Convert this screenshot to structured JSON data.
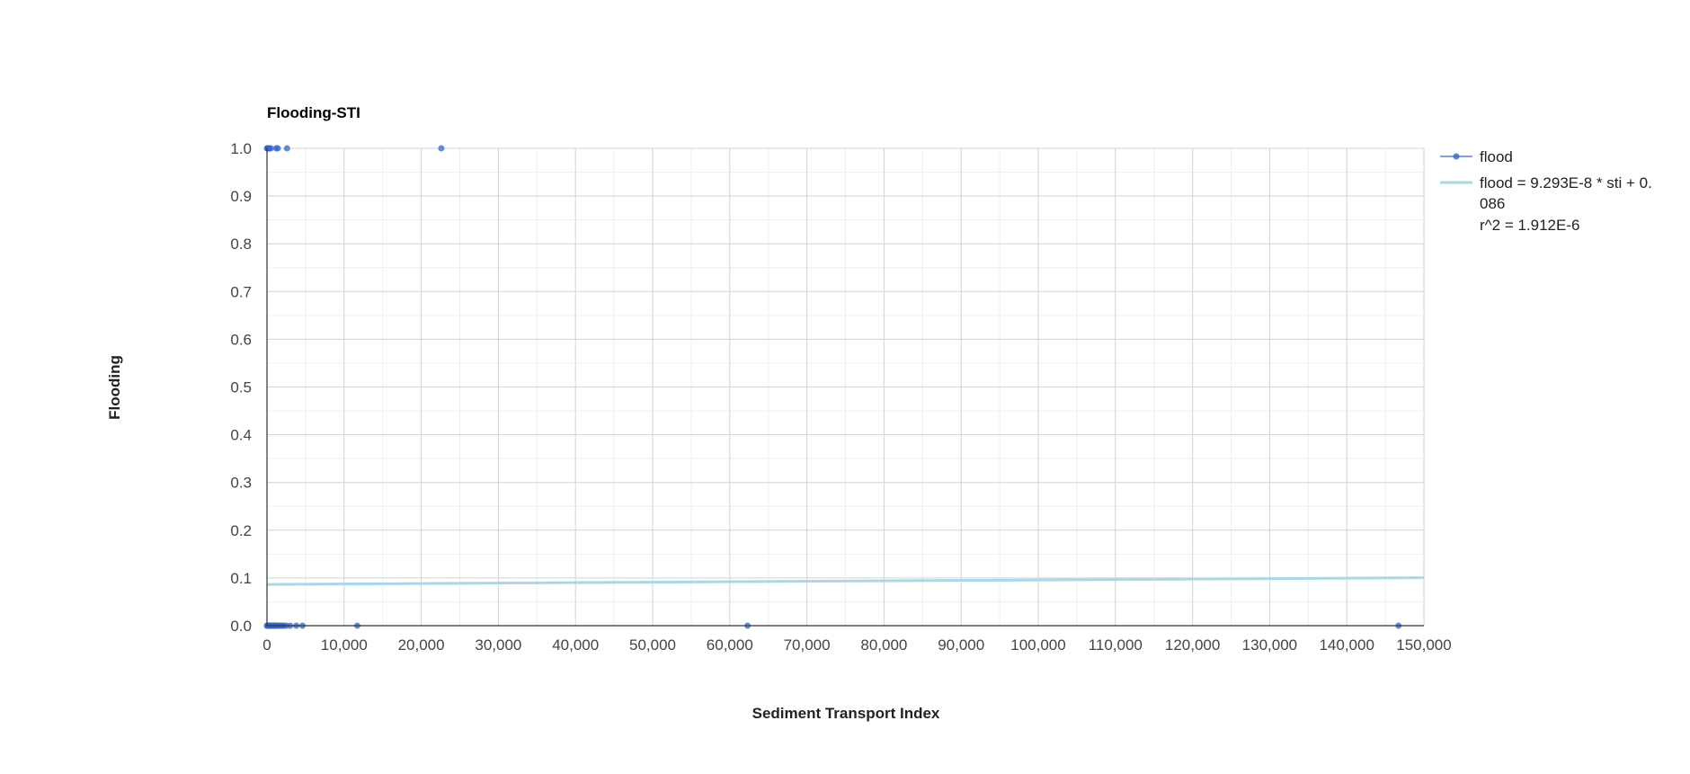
{
  "chart_data": {
    "type": "scatter",
    "title": "Flooding-STI",
    "xlabel": "Sediment Transport Index",
    "ylabel": "Flooding",
    "xlim": [
      0,
      150000
    ],
    "ylim": [
      0,
      1
    ],
    "x_ticks": [
      "0",
      "10,000",
      "20,000",
      "30,000",
      "40,000",
      "50,000",
      "60,000",
      "70,000",
      "80,000",
      "90,000",
      "100,000",
      "110,000",
      "120,000",
      "130,000",
      "140,000",
      "150,000"
    ],
    "y_ticks": [
      "0.0",
      "0.1",
      "0.2",
      "0.3",
      "0.4",
      "0.5",
      "0.6",
      "0.7",
      "0.8",
      "0.9",
      "1.0"
    ],
    "grid": true,
    "legend_position": "right",
    "series": [
      {
        "name": "flood",
        "color": "#3366cc",
        "points": [
          [
            0,
            1
          ],
          [
            50,
            1
          ],
          [
            100,
            1
          ],
          [
            150,
            1
          ],
          [
            200,
            1
          ],
          [
            300,
            1
          ],
          [
            500,
            1
          ],
          [
            1200,
            1
          ],
          [
            1400,
            1
          ],
          [
            2600,
            1
          ],
          [
            22600,
            1
          ],
          [
            0,
            0
          ],
          [
            40,
            0
          ],
          [
            80,
            0
          ],
          [
            120,
            0
          ],
          [
            160,
            0
          ],
          [
            200,
            0
          ],
          [
            250,
            0
          ],
          [
            300,
            0
          ],
          [
            350,
            0
          ],
          [
            400,
            0
          ],
          [
            500,
            0
          ],
          [
            600,
            0
          ],
          [
            700,
            0
          ],
          [
            800,
            0
          ],
          [
            900,
            0
          ],
          [
            1000,
            0
          ],
          [
            1100,
            0
          ],
          [
            1200,
            0
          ],
          [
            1400,
            0
          ],
          [
            1600,
            0
          ],
          [
            1800,
            0
          ],
          [
            2000,
            0
          ],
          [
            2200,
            0
          ],
          [
            2500,
            0
          ],
          [
            3000,
            0
          ],
          [
            3800,
            0
          ],
          [
            4600,
            0
          ],
          [
            11700,
            0
          ],
          [
            62300,
            0
          ],
          [
            146700,
            0
          ]
        ]
      }
    ],
    "trendline": {
      "label_lines": [
        "flood = 9.293E-8 * sti + 0.",
        "086",
        "r^2 = 1.912E-6"
      ],
      "color": "#a8d8e8",
      "slope": 9.293e-08,
      "intercept": 0.0865
    }
  }
}
